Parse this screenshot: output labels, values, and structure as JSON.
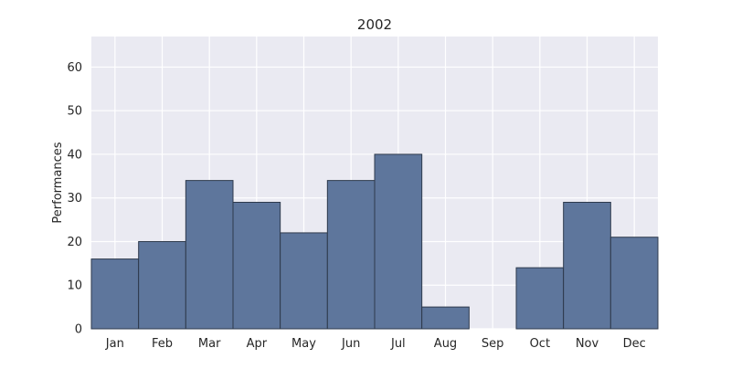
{
  "chart_data": {
    "type": "bar",
    "title": "2002",
    "xlabel": "",
    "ylabel": "Performances",
    "categories": [
      "Jan",
      "Feb",
      "Mar",
      "Apr",
      "May",
      "Jun",
      "Jul",
      "Aug",
      "Sep",
      "Oct",
      "Nov",
      "Dec"
    ],
    "values": [
      16,
      20,
      34,
      29,
      22,
      34,
      40,
      5,
      0,
      14,
      29,
      21
    ],
    "ylim": [
      0,
      67
    ],
    "yticks": [
      0,
      10,
      20,
      30,
      40,
      50,
      60
    ],
    "grid": true,
    "colors": {
      "background": "#EAEAF2",
      "bar_fill": "#5E769C",
      "bar_edge": "#2E3A4C",
      "grid": "#FFFFFF"
    }
  }
}
